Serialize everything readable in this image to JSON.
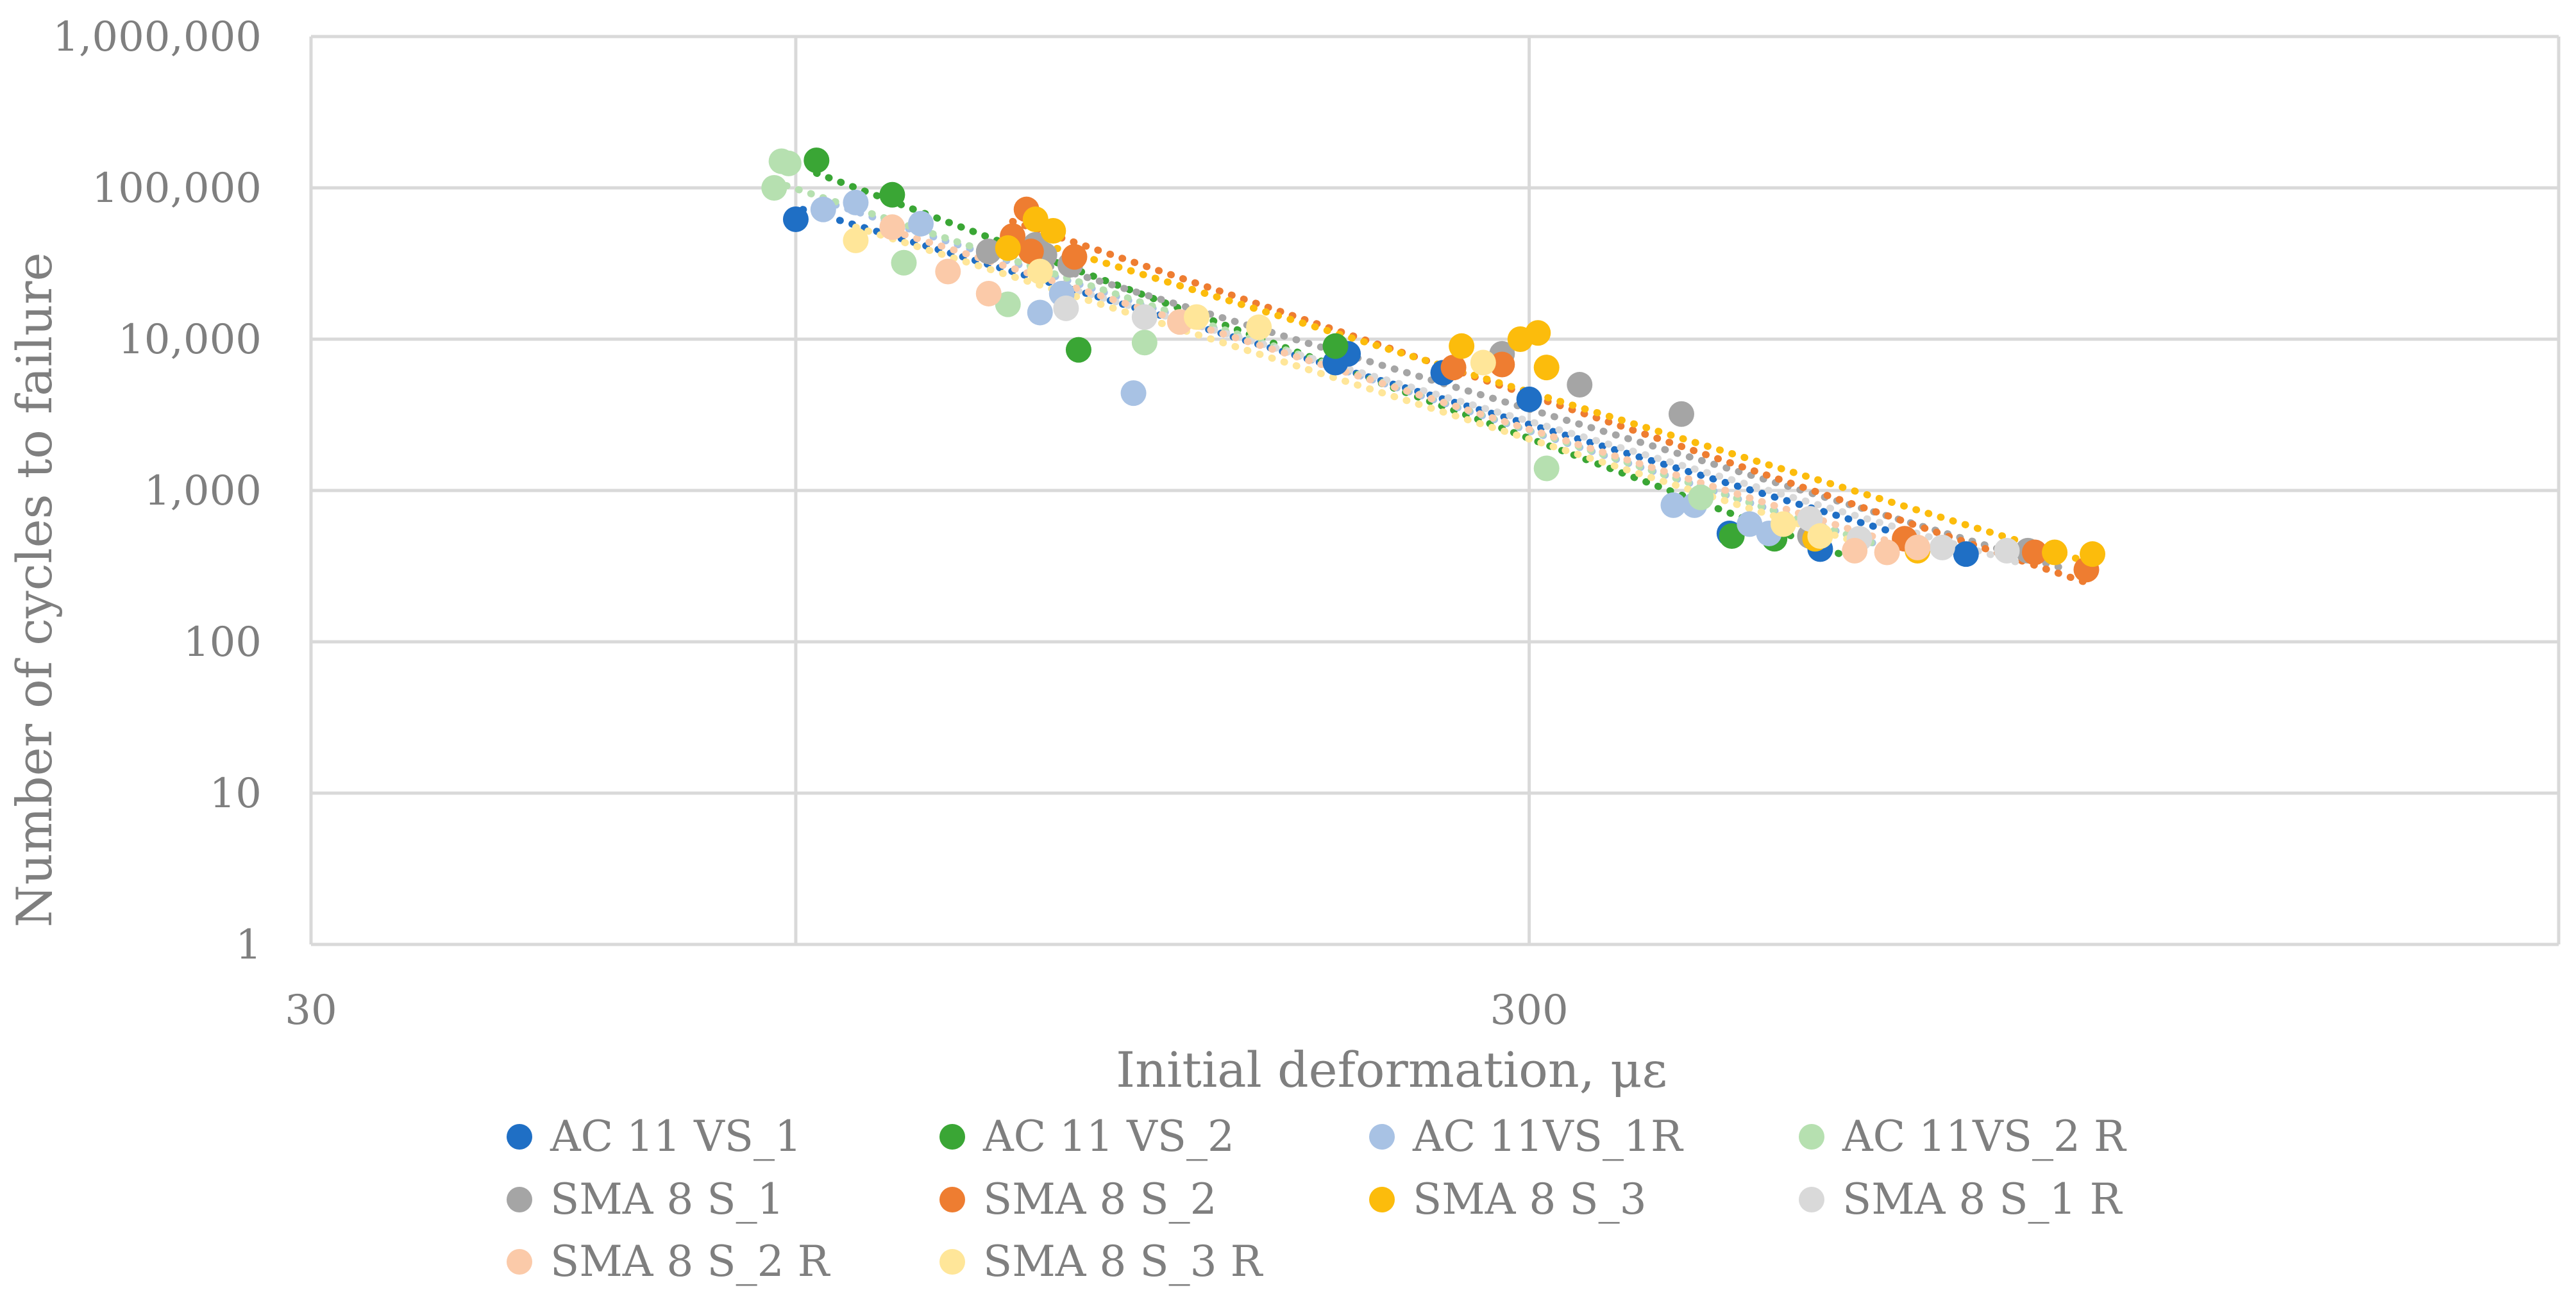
{
  "chart_data": {
    "type": "scatter",
    "title": "",
    "xlabel": "Initial deformation, με",
    "ylabel": "Number of cycles to failure",
    "xscale": "log",
    "yscale": "log",
    "xlim": [
      30,
      2100
    ],
    "ylim": [
      1,
      1000000
    ],
    "x_ticks": [
      30,
      300
    ],
    "x_tick_labels": [
      "30",
      "300"
    ],
    "y_ticks": [
      1,
      10,
      100,
      1000,
      10000,
      100000,
      1000000
    ],
    "y_tick_labels": [
      "1",
      "10",
      "100",
      "1,000",
      "10,000",
      "100,000",
      "1,000,000"
    ],
    "x_gridlines": [
      30,
      75,
      300,
      2100
    ],
    "y_gridlines": [
      1,
      10,
      100,
      1000,
      10000,
      100000,
      1000000
    ],
    "grid": true,
    "legend_position": "bottom",
    "series": [
      {
        "name": "AC 11 VS_1",
        "color": "#1f6fc5",
        "points": [
          [
            75,
            62000
          ],
          [
            208,
            7000
          ],
          [
            213,
            8000
          ],
          [
            255,
            6000
          ],
          [
            300,
            4000
          ],
          [
            438,
            520
          ],
          [
            520,
            410
          ],
          [
            685,
            380
          ]
        ],
        "trend": [
          [
            76,
            72000
          ],
          [
            672,
            400
          ]
        ]
      },
      {
        "name": "AC 11 VS_2",
        "color": "#3aa635",
        "points": [
          [
            78,
            152000
          ],
          [
            90,
            90000
          ],
          [
            128,
            8500
          ],
          [
            208,
            9000
          ],
          [
            440,
            500
          ],
          [
            477,
            480
          ]
        ],
        "trend": [
          [
            78,
            125000
          ],
          [
            540,
            380
          ]
        ]
      },
      {
        "name": "AC 11VS_1R",
        "color": "#a8c2e4",
        "points": [
          [
            79,
            72000
          ],
          [
            84,
            80000
          ],
          [
            95,
            58000
          ],
          [
            119,
            15000
          ],
          [
            124,
            20000
          ],
          [
            142,
            4400
          ],
          [
            394,
            800
          ],
          [
            410,
            800
          ],
          [
            455,
            600
          ],
          [
            472,
            520
          ]
        ],
        "trend": [
          [
            79,
            82000
          ],
          [
            590,
            420
          ]
        ]
      },
      {
        "name": "AC 11VS_2 R",
        "color": "#b6e0b0",
        "points": [
          [
            72,
            100000
          ],
          [
            73,
            150000
          ],
          [
            74,
            145000
          ],
          [
            92,
            32000
          ],
          [
            112,
            17000
          ],
          [
            145,
            9500
          ],
          [
            310,
            1400
          ],
          [
            415,
            900
          ]
        ],
        "trend": [
          [
            72,
            110000
          ],
          [
            600,
            400
          ]
        ]
      },
      {
        "name": "SMA 8 S_1",
        "color": "#a5a5a5",
        "points": [
          [
            108,
            38000
          ],
          [
            118,
            42000
          ],
          [
            120,
            36000
          ],
          [
            126,
            31000
          ],
          [
            285,
            8000
          ],
          [
            330,
            5000
          ],
          [
            400,
            3200
          ],
          [
            510,
            500
          ],
          [
            770,
            400
          ]
        ],
        "trend": [
          [
            108,
            40000
          ],
          [
            830,
            300
          ]
        ]
      },
      {
        "name": "SMA 8 S_2",
        "color": "#ee7d31",
        "points": [
          [
            113,
            48000
          ],
          [
            116,
            72000
          ],
          [
            117,
            38000
          ],
          [
            127,
            35000
          ],
          [
            260,
            6500
          ],
          [
            285,
            6800
          ],
          [
            610,
            480
          ],
          [
            780,
            390
          ],
          [
            860,
            300
          ]
        ],
        "trend": [
          [
            113,
            60000
          ],
          [
            855,
            250
          ]
        ]
      },
      {
        "name": "SMA 8 S_3",
        "color": "#fcbc0c",
        "points": [
          [
            112,
            40000
          ],
          [
            118,
            62000
          ],
          [
            122,
            52000
          ],
          [
            264,
            9000
          ],
          [
            295,
            10000
          ],
          [
            305,
            11000
          ],
          [
            310,
            6500
          ],
          [
            515,
            480
          ],
          [
            625,
            400
          ],
          [
            810,
            390
          ],
          [
            870,
            380
          ]
        ],
        "trend": [
          [
            112,
            50000
          ],
          [
            870,
            330
          ]
        ]
      },
      {
        "name": "SMA 8 S_1 R",
        "color": "#d9d9d9",
        "points": [
          [
            125,
            16000
          ],
          [
            145,
            14000
          ],
          [
            510,
            650
          ],
          [
            560,
            480
          ],
          [
            655,
            420
          ],
          [
            740,
            400
          ]
        ],
        "trend": [
          [
            125,
            22000
          ],
          [
            760,
            330
          ]
        ]
      },
      {
        "name": "SMA 8 S_2 R",
        "color": "#fbcaa9",
        "points": [
          [
            90,
            55000
          ],
          [
            100,
            28000
          ],
          [
            108,
            20000
          ],
          [
            155,
            13000
          ],
          [
            555,
            400
          ],
          [
            590,
            390
          ],
          [
            625,
            420
          ]
        ],
        "trend": [
          [
            90,
            52000
          ],
          [
            640,
            380
          ]
        ]
      },
      {
        "name": "SMA 8 S_3 R",
        "color": "#ffe699",
        "points": [
          [
            84,
            45000
          ],
          [
            119,
            28000
          ],
          [
            160,
            14000
          ],
          [
            180,
            12000
          ],
          [
            275,
            7000
          ],
          [
            485,
            600
          ],
          [
            520,
            500
          ]
        ],
        "trend": [
          [
            84,
            55000
          ],
          [
            560,
            450
          ]
        ]
      }
    ]
  }
}
